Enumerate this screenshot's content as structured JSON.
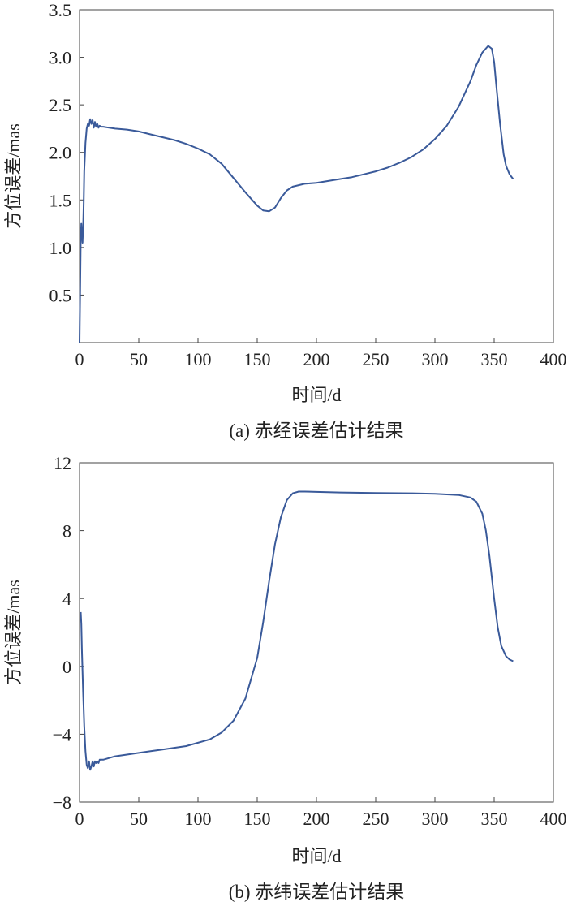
{
  "chart_data": [
    {
      "type": "line",
      "title": "",
      "caption": "(a) 赤经误差估计结果",
      "xlabel": "时间/d",
      "ylabel": "方位误差/mas",
      "xlim": [
        0,
        400
      ],
      "ylim": [
        0,
        3.5
      ],
      "xticks": [
        "0",
        "50",
        "100",
        "150",
        "200",
        "250",
        "300",
        "350",
        "400"
      ],
      "yticks": [
        "0.5",
        "1.0",
        "1.5",
        "2.0",
        "2.5",
        "3.0",
        "3.5"
      ],
      "grid": false,
      "series_color": "#3a5a9a",
      "series": [
        {
          "x": [
            0,
            0.5,
            1,
            1.5,
            2,
            2.5,
            3,
            3.5,
            4,
            5,
            6,
            7,
            8,
            9,
            10,
            11,
            12,
            13,
            14,
            15,
            16,
            17,
            18,
            20,
            25,
            30,
            40,
            50,
            60,
            70,
            80,
            90,
            100,
            110,
            120,
            130,
            140,
            150,
            155,
            160,
            165,
            170,
            175,
            180,
            190,
            200,
            210,
            220,
            230,
            240,
            250,
            260,
            270,
            280,
            290,
            300,
            310,
            320,
            330,
            335,
            340,
            345,
            348,
            350,
            352,
            355,
            358,
            360,
            363,
            366
          ],
          "y": [
            0.0,
            0.5,
            1.1,
            1.25,
            1.15,
            1.05,
            1.2,
            1.45,
            1.8,
            2.1,
            2.25,
            2.3,
            2.28,
            2.35,
            2.3,
            2.34,
            2.26,
            2.32,
            2.27,
            2.3,
            2.26,
            2.28,
            2.27,
            2.27,
            2.26,
            2.25,
            2.24,
            2.22,
            2.19,
            2.16,
            2.13,
            2.09,
            2.04,
            1.98,
            1.88,
            1.73,
            1.58,
            1.44,
            1.39,
            1.38,
            1.42,
            1.52,
            1.6,
            1.64,
            1.67,
            1.68,
            1.7,
            1.72,
            1.74,
            1.77,
            1.8,
            1.84,
            1.89,
            1.95,
            2.03,
            2.14,
            2.28,
            2.48,
            2.75,
            2.92,
            3.05,
            3.12,
            3.09,
            2.95,
            2.68,
            2.3,
            1.98,
            1.86,
            1.77,
            1.72
          ]
        }
      ]
    },
    {
      "type": "line",
      "title": "",
      "caption": "(b) 赤纬误差估计结果",
      "xlabel": "时间/d",
      "ylabel": "方位误差/mas",
      "xlim": [
        0,
        400
      ],
      "ylim": [
        -8,
        12
      ],
      "xticks": [
        "0",
        "50",
        "100",
        "150",
        "200",
        "250",
        "300",
        "350",
        "400"
      ],
      "yticks": [
        "−8",
        "−4",
        "0",
        "4",
        "8",
        "12"
      ],
      "grid": false,
      "series_color": "#3a5a9a",
      "series": [
        {
          "x": [
            1,
            1.5,
            2,
            3,
            4,
            5,
            6,
            7,
            8,
            9,
            10,
            11,
            12,
            13,
            14,
            15,
            16,
            17,
            18,
            20,
            25,
            30,
            40,
            50,
            60,
            70,
            80,
            90,
            100,
            110,
            120,
            130,
            140,
            150,
            155,
            160,
            165,
            170,
            175,
            180,
            185,
            190,
            200,
            220,
            250,
            280,
            300,
            320,
            330,
            335,
            340,
            343,
            346,
            350,
            353,
            356,
            360,
            363,
            366
          ],
          "y": [
            3.2,
            2.5,
            1.0,
            -1.5,
            -3.5,
            -5.0,
            -5.8,
            -6.0,
            -5.6,
            -6.1,
            -5.9,
            -5.6,
            -5.9,
            -5.6,
            -5.7,
            -5.6,
            -5.7,
            -5.5,
            -5.5,
            -5.5,
            -5.4,
            -5.3,
            -5.2,
            -5.1,
            -5.0,
            -4.9,
            -4.8,
            -4.7,
            -4.5,
            -4.3,
            -3.9,
            -3.2,
            -1.9,
            0.5,
            2.6,
            5.0,
            7.2,
            8.8,
            9.8,
            10.2,
            10.3,
            10.3,
            10.28,
            10.25,
            10.22,
            10.2,
            10.17,
            10.1,
            9.95,
            9.7,
            9.0,
            8.0,
            6.5,
            4.0,
            2.3,
            1.2,
            0.6,
            0.4,
            0.3
          ]
        }
      ]
    }
  ]
}
